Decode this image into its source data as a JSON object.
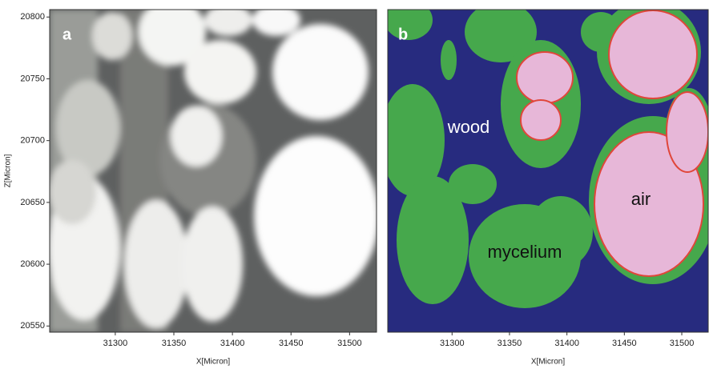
{
  "panels": [
    {
      "label": "a",
      "xlabel": "X[Micron]",
      "ylabel": "Z[Micron]",
      "xlim": [
        31244,
        31523
      ],
      "ylim": [
        20545,
        20806
      ],
      "xticks": [
        31300,
        31350,
        31400,
        31450,
        31500
      ],
      "yticks": [
        20550,
        20600,
        20650,
        20700,
        20750,
        20800
      ]
    },
    {
      "label": "b",
      "xlabel": "X[Micron]",
      "xlim": [
        31244,
        31523
      ],
      "xticks": [
        31300,
        31350,
        31400,
        31450,
        31500
      ],
      "annotations": [
        "wood",
        "mycelium",
        "air"
      ]
    }
  ]
}
